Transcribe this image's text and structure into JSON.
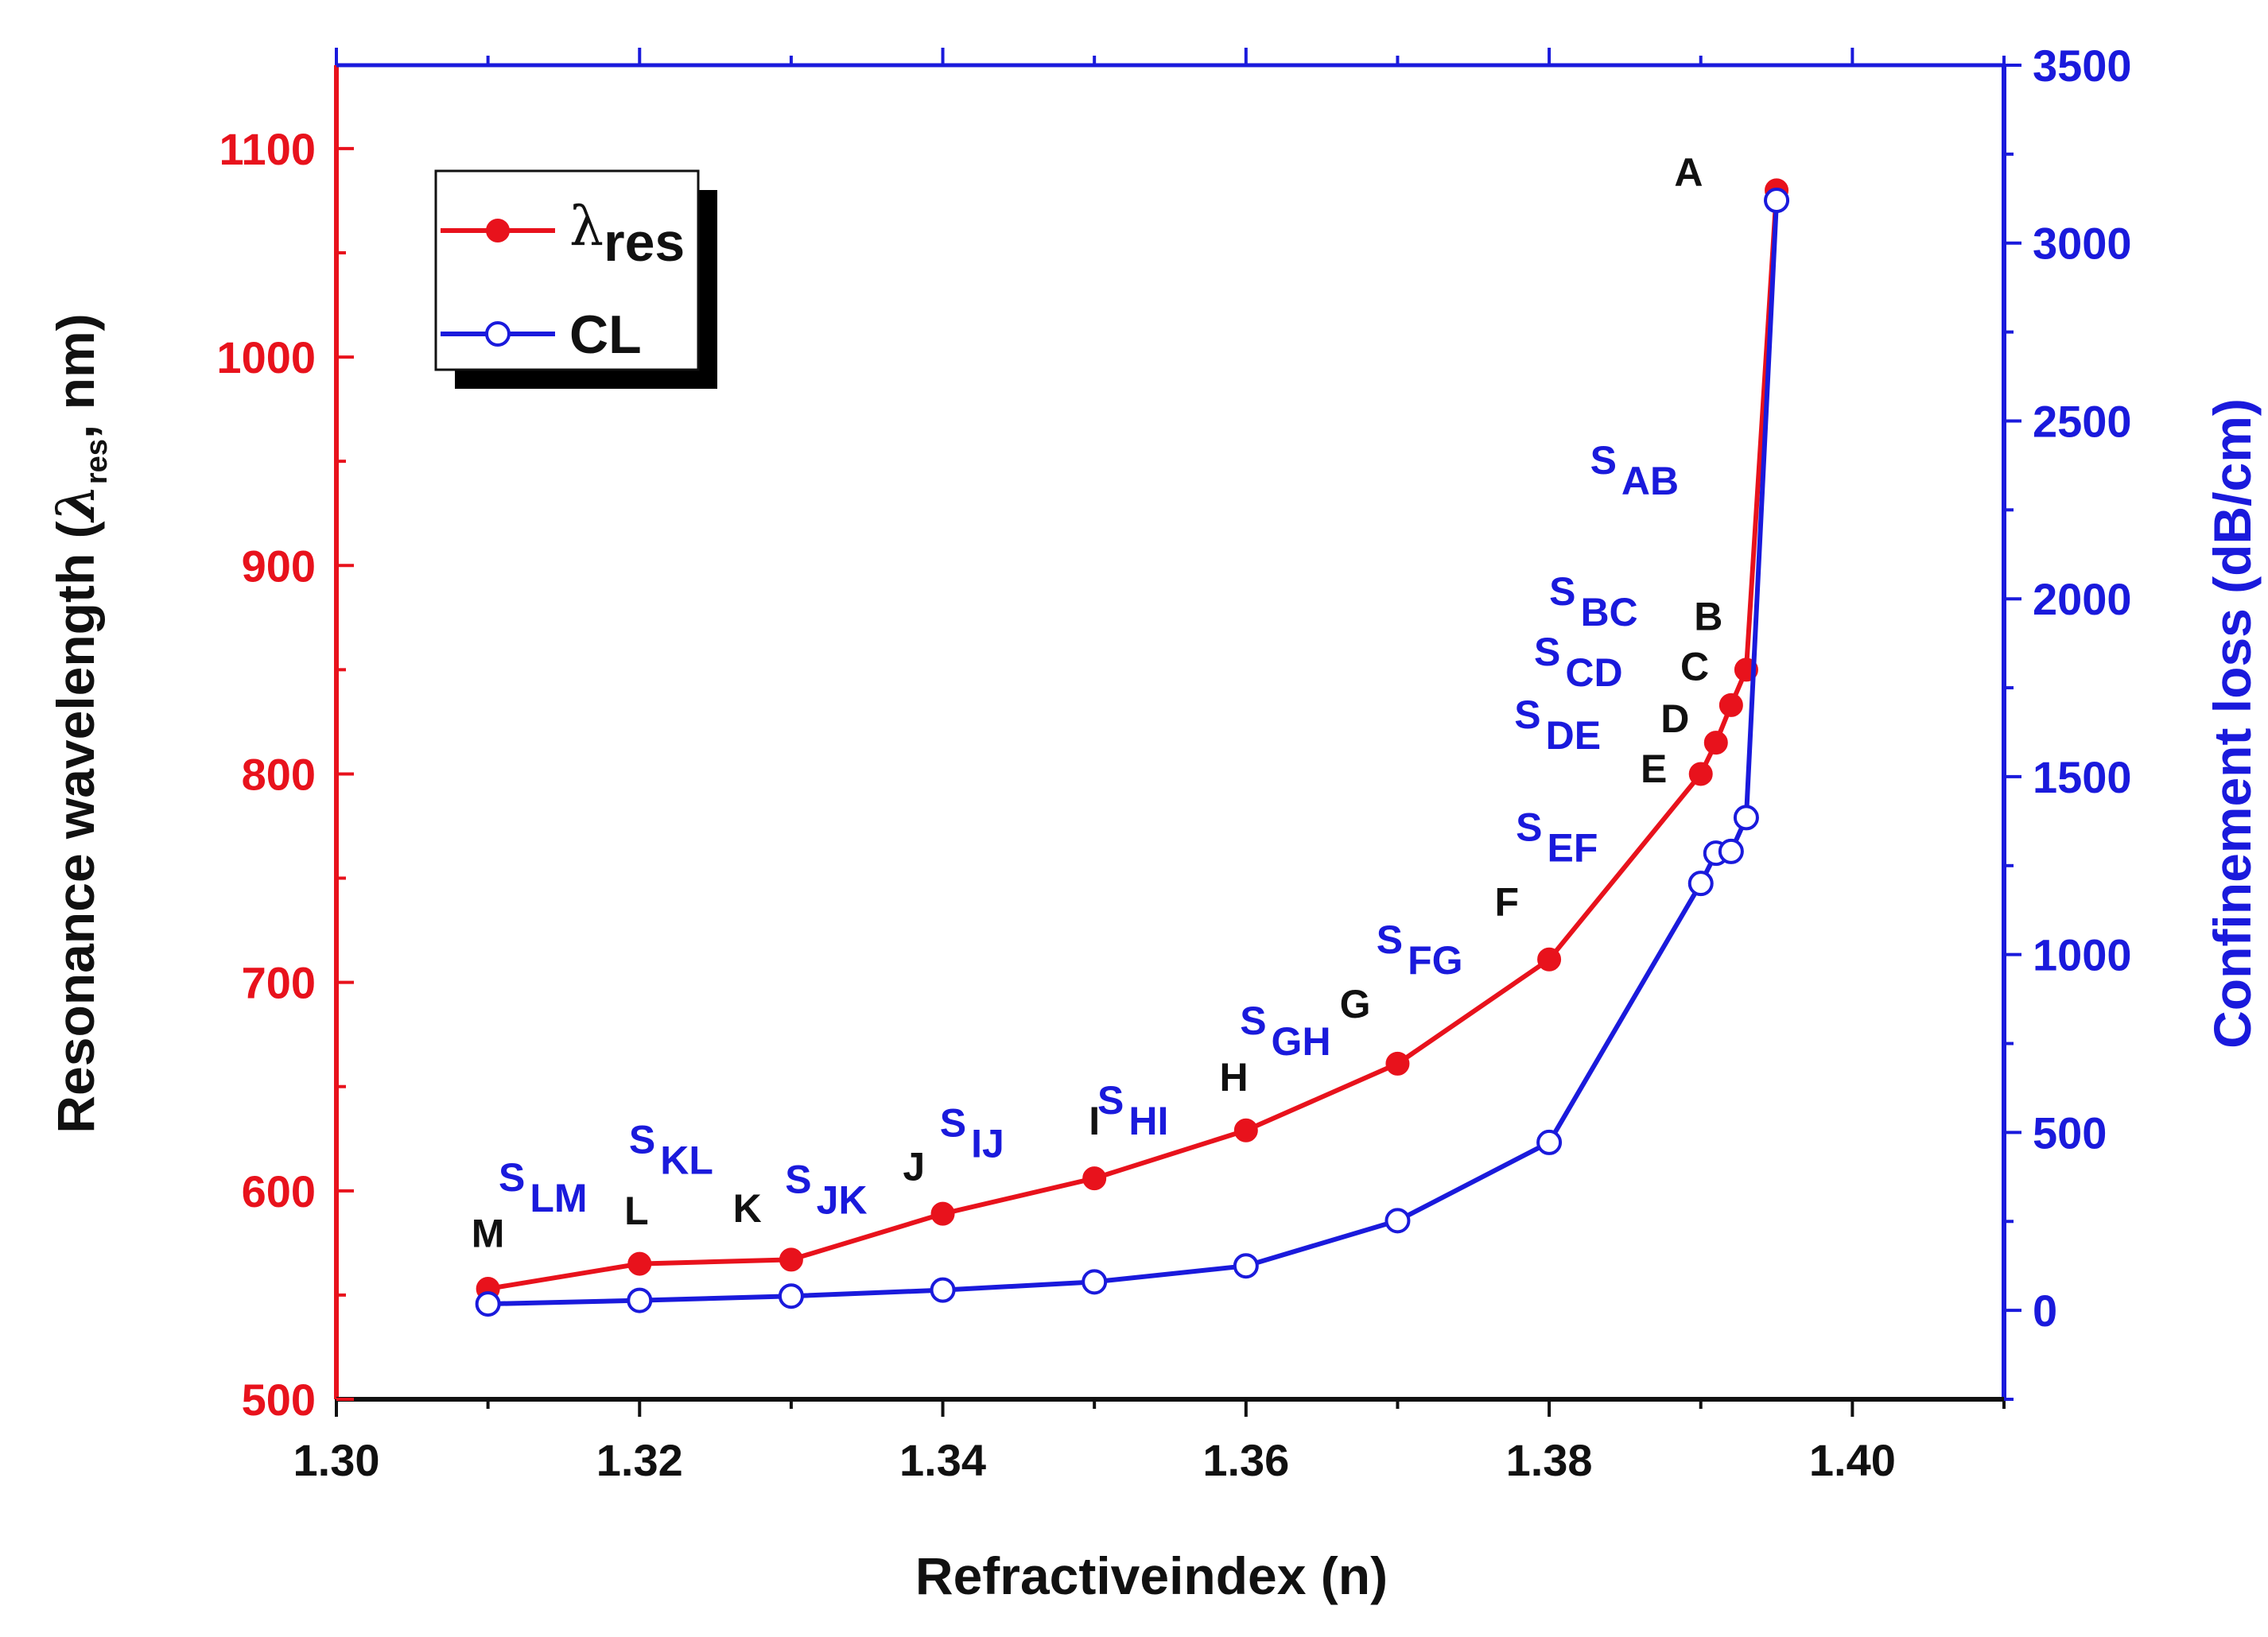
{
  "chart_data": {
    "type": "line",
    "xlabel": "Refractiveindex (n)",
    "ylabel_left": {
      "main": "Resonance wavelength (",
      "symbol": "λ",
      "sub": "res",
      "tail": ", nm)"
    },
    "ylabel_right": "Confinement loss (dB/cm)",
    "xlim": [
      1.3,
      1.41
    ],
    "ylim_left": [
      500,
      1140
    ],
    "ylim_right": [
      -250,
      3500
    ],
    "x_ticks": [
      "1.30",
      "1.32",
      "1.34",
      "1.36",
      "1.38",
      "1.40"
    ],
    "y_left_ticks": [
      "500",
      "600",
      "700",
      "800",
      "900",
      "1000",
      "1100"
    ],
    "y_right_ticks": [
      "0",
      "500",
      "1000",
      "1500",
      "2000",
      "2500",
      "3000",
      "3500"
    ],
    "series": [
      {
        "name": "λres",
        "axis": "left",
        "color": "#e8121c",
        "marker": "filled-circle",
        "x": [
          1.31,
          1.32,
          1.33,
          1.34,
          1.35,
          1.36,
          1.37,
          1.38,
          1.39,
          1.391,
          1.392,
          1.393,
          1.395
        ],
        "values": [
          553,
          565,
          567,
          589,
          606,
          629,
          661,
          711,
          800,
          815,
          833,
          850,
          1080
        ]
      },
      {
        "name": "CL",
        "axis": "right",
        "color": "#1a1adc",
        "marker": "open-circle",
        "x": [
          1.31,
          1.32,
          1.33,
          1.34,
          1.35,
          1.36,
          1.37,
          1.38,
          1.39,
          1.391,
          1.392,
          1.393,
          1.395
        ],
        "values": [
          18,
          28,
          40,
          57,
          80,
          125,
          252,
          472,
          1200,
          1285,
          1290,
          1385,
          3120
        ]
      }
    ],
    "legend": {
      "position": "top-left",
      "entries": [
        {
          "symbol": "λ",
          "sub": "res"
        },
        {
          "label": "CL"
        }
      ]
    },
    "point_labels": [
      {
        "text": "M",
        "x": 1.31,
        "y": 573
      },
      {
        "text": "L",
        "x": 1.3198,
        "y": 584
      },
      {
        "text": "K",
        "x": 1.3271,
        "y": 585
      },
      {
        "text": "J",
        "x": 1.3381,
        "y": 605
      },
      {
        "text": "I",
        "x": 1.35,
        "y": 627
      },
      {
        "text": "H",
        "x": 1.3592,
        "y": 648
      },
      {
        "text": "G",
        "x": 1.3672,
        "y": 683
      },
      {
        "text": "F",
        "x": 1.3772,
        "y": 732
      },
      {
        "text": "E",
        "x": 1.3869,
        "y": 796
      },
      {
        "text": "D",
        "x": 1.3883,
        "y": 820
      },
      {
        "text": "C",
        "x": 1.3896,
        "y": 845
      },
      {
        "text": "B",
        "x": 1.3905,
        "y": 869
      },
      {
        "text": "A",
        "x": 1.3892,
        "y": 1082
      }
    ],
    "segment_labels": [
      {
        "s": "S",
        "sub": "LM",
        "x": 1.3107,
        "y": 600
      },
      {
        "s": "S",
        "sub": "KL",
        "x": 1.3193,
        "y": 618
      },
      {
        "s": "S",
        "sub": "JK",
        "x": 1.3296,
        "y": 599
      },
      {
        "s": "S",
        "sub": "IJ",
        "x": 1.3398,
        "y": 626
      },
      {
        "s": "S",
        "sub": "HI",
        "x": 1.3502,
        "y": 637
      },
      {
        "s": "S",
        "sub": "GH",
        "x": 1.3596,
        "y": 675
      },
      {
        "s": "S",
        "sub": "FG",
        "x": 1.3686,
        "y": 714
      },
      {
        "s": "S",
        "sub": "EF",
        "x": 1.3778,
        "y": 768
      },
      {
        "s": "S",
        "sub": "DE",
        "x": 1.3777,
        "y": 822
      },
      {
        "s": "S",
        "sub": "CD",
        "x": 1.379,
        "y": 852
      },
      {
        "s": "S",
        "sub": "BC",
        "x": 1.38,
        "y": 881
      },
      {
        "s": "S",
        "sub": "AB",
        "x": 1.3827,
        "y": 944
      }
    ]
  }
}
